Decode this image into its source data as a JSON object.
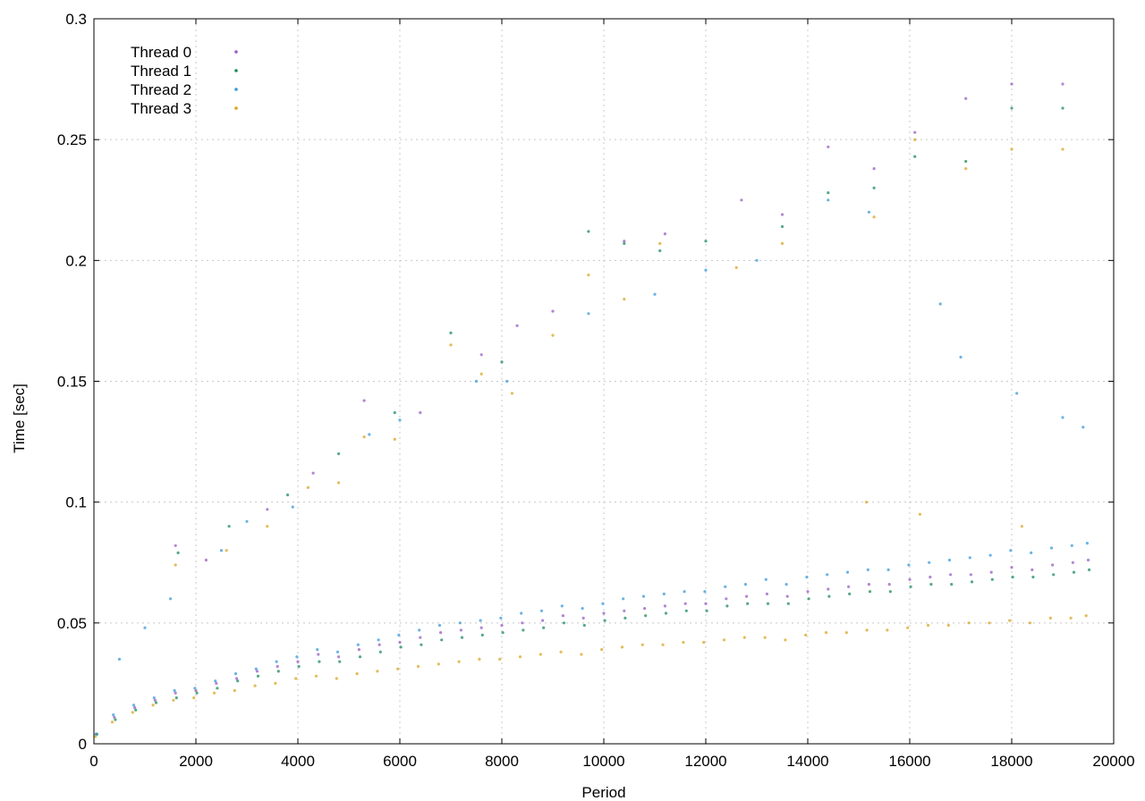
{
  "chart_data": {
    "type": "scatter",
    "title": "",
    "xlabel": "Period",
    "ylabel": "Time [sec]",
    "xlim": [
      0,
      20000
    ],
    "ylim": [
      0,
      0.3
    ],
    "x_ticks": [
      "0",
      "2000",
      "4000",
      "6000",
      "8000",
      "10000",
      "12000",
      "14000",
      "16000",
      "18000",
      "20000"
    ],
    "y_ticks": [
      "0",
      "0.05",
      "0.1",
      "0.15",
      "0.2",
      "0.25",
      "0.3"
    ],
    "x_tick_values": [
      0,
      2000,
      4000,
      6000,
      8000,
      10000,
      12000,
      14000,
      16000,
      18000,
      20000
    ],
    "y_tick_values": [
      0,
      0.05,
      0.1,
      0.15,
      0.2,
      0.25,
      0.3
    ],
    "grid": true,
    "legend_position": "top-left",
    "series": [
      {
        "name": "Thread 0",
        "color": "#9a5cc4",
        "points": [
          [
            50,
            0.004
          ],
          [
            400,
            0.011
          ],
          [
            800,
            0.015
          ],
          [
            1200,
            0.018
          ],
          [
            1600,
            0.021
          ],
          [
            2000,
            0.022
          ],
          [
            2400,
            0.025
          ],
          [
            2800,
            0.027
          ],
          [
            3200,
            0.03
          ],
          [
            3600,
            0.032
          ],
          [
            4000,
            0.034
          ],
          [
            4400,
            0.037
          ],
          [
            4800,
            0.036
          ],
          [
            5200,
            0.039
          ],
          [
            5600,
            0.041
          ],
          [
            6000,
            0.042
          ],
          [
            6400,
            0.044
          ],
          [
            6800,
            0.046
          ],
          [
            7200,
            0.047
          ],
          [
            7600,
            0.048
          ],
          [
            8000,
            0.049
          ],
          [
            8400,
            0.05
          ],
          [
            8800,
            0.051
          ],
          [
            9200,
            0.053
          ],
          [
            9600,
            0.052
          ],
          [
            10000,
            0.054
          ],
          [
            10400,
            0.055
          ],
          [
            10800,
            0.056
          ],
          [
            11200,
            0.057
          ],
          [
            11600,
            0.058
          ],
          [
            12000,
            0.058
          ],
          [
            12400,
            0.06
          ],
          [
            12800,
            0.061
          ],
          [
            13200,
            0.062
          ],
          [
            13600,
            0.061
          ],
          [
            14000,
            0.063
          ],
          [
            14400,
            0.064
          ],
          [
            14800,
            0.065
          ],
          [
            15200,
            0.066
          ],
          [
            15600,
            0.066
          ],
          [
            16000,
            0.068
          ],
          [
            16400,
            0.069
          ],
          [
            16800,
            0.07
          ],
          [
            17200,
            0.07
          ],
          [
            17600,
            0.071
          ],
          [
            18000,
            0.073
          ],
          [
            18400,
            0.072
          ],
          [
            18800,
            0.074
          ],
          [
            19200,
            0.075
          ],
          [
            19500,
            0.076
          ],
          [
            1600,
            0.082
          ],
          [
            2200,
            0.076
          ],
          [
            3400,
            0.097
          ],
          [
            4300,
            0.112
          ],
          [
            5300,
            0.142
          ],
          [
            6400,
            0.137
          ],
          [
            7600,
            0.161
          ],
          [
            8300,
            0.173
          ],
          [
            9000,
            0.179
          ],
          [
            10400,
            0.208
          ],
          [
            11200,
            0.211
          ],
          [
            12700,
            0.225
          ],
          [
            13500,
            0.219
          ],
          [
            14400,
            0.247
          ],
          [
            15300,
            0.238
          ],
          [
            16100,
            0.253
          ],
          [
            17100,
            0.267
          ],
          [
            18000,
            0.273
          ],
          [
            19000,
            0.273
          ]
        ]
      },
      {
        "name": "Thread 1",
        "color": "#1e8c5a",
        "points": [
          [
            60,
            0.004
          ],
          [
            420,
            0.01
          ],
          [
            820,
            0.014
          ],
          [
            1220,
            0.017
          ],
          [
            1620,
            0.019
          ],
          [
            2020,
            0.021
          ],
          [
            2420,
            0.023
          ],
          [
            2820,
            0.026
          ],
          [
            3220,
            0.028
          ],
          [
            3620,
            0.03
          ],
          [
            4020,
            0.032
          ],
          [
            4420,
            0.034
          ],
          [
            4820,
            0.034
          ],
          [
            5220,
            0.036
          ],
          [
            5620,
            0.038
          ],
          [
            6020,
            0.04
          ],
          [
            6420,
            0.041
          ],
          [
            6820,
            0.043
          ],
          [
            7220,
            0.044
          ],
          [
            7620,
            0.045
          ],
          [
            8020,
            0.046
          ],
          [
            8420,
            0.047
          ],
          [
            8820,
            0.048
          ],
          [
            9220,
            0.05
          ],
          [
            9620,
            0.049
          ],
          [
            10020,
            0.051
          ],
          [
            10420,
            0.052
          ],
          [
            10820,
            0.053
          ],
          [
            11220,
            0.054
          ],
          [
            11620,
            0.055
          ],
          [
            12020,
            0.055
          ],
          [
            12420,
            0.057
          ],
          [
            12820,
            0.058
          ],
          [
            13220,
            0.058
          ],
          [
            13620,
            0.058
          ],
          [
            14020,
            0.06
          ],
          [
            14420,
            0.061
          ],
          [
            14820,
            0.062
          ],
          [
            15220,
            0.063
          ],
          [
            15620,
            0.063
          ],
          [
            16020,
            0.065
          ],
          [
            16420,
            0.066
          ],
          [
            16820,
            0.066
          ],
          [
            17220,
            0.067
          ],
          [
            17620,
            0.068
          ],
          [
            18020,
            0.069
          ],
          [
            18420,
            0.069
          ],
          [
            18820,
            0.07
          ],
          [
            19220,
            0.071
          ],
          [
            19520,
            0.072
          ],
          [
            1650,
            0.079
          ],
          [
            2650,
            0.09
          ],
          [
            3800,
            0.103
          ],
          [
            4800,
            0.12
          ],
          [
            5900,
            0.137
          ],
          [
            7000,
            0.17
          ],
          [
            8000,
            0.158
          ],
          [
            9700,
            0.212
          ],
          [
            10400,
            0.207
          ],
          [
            11100,
            0.204
          ],
          [
            12000,
            0.208
          ],
          [
            13500,
            0.214
          ],
          [
            14400,
            0.228
          ],
          [
            15300,
            0.23
          ],
          [
            16100,
            0.243
          ],
          [
            17100,
            0.241
          ],
          [
            18000,
            0.263
          ],
          [
            19000,
            0.263
          ]
        ]
      },
      {
        "name": "Thread 2",
        "color": "#3a9ad9",
        "points": [
          [
            40,
            0.004
          ],
          [
            380,
            0.012
          ],
          [
            780,
            0.016
          ],
          [
            1180,
            0.019
          ],
          [
            1580,
            0.022
          ],
          [
            1980,
            0.023
          ],
          [
            2380,
            0.026
          ],
          [
            2780,
            0.029
          ],
          [
            3180,
            0.031
          ],
          [
            3580,
            0.034
          ],
          [
            3980,
            0.036
          ],
          [
            4380,
            0.039
          ],
          [
            4780,
            0.038
          ],
          [
            5180,
            0.041
          ],
          [
            5580,
            0.043
          ],
          [
            5980,
            0.045
          ],
          [
            6380,
            0.047
          ],
          [
            6780,
            0.049
          ],
          [
            7180,
            0.05
          ],
          [
            7580,
            0.051
          ],
          [
            7980,
            0.052
          ],
          [
            8380,
            0.054
          ],
          [
            8780,
            0.055
          ],
          [
            9180,
            0.057
          ],
          [
            9580,
            0.056
          ],
          [
            9980,
            0.058
          ],
          [
            10380,
            0.06
          ],
          [
            10780,
            0.061
          ],
          [
            11180,
            0.062
          ],
          [
            11580,
            0.063
          ],
          [
            11980,
            0.063
          ],
          [
            12380,
            0.065
          ],
          [
            12780,
            0.066
          ],
          [
            13180,
            0.068
          ],
          [
            13580,
            0.066
          ],
          [
            13980,
            0.069
          ],
          [
            14380,
            0.07
          ],
          [
            14780,
            0.071
          ],
          [
            15180,
            0.072
          ],
          [
            15580,
            0.072
          ],
          [
            15980,
            0.074
          ],
          [
            16380,
            0.075
          ],
          [
            16780,
            0.076
          ],
          [
            17180,
            0.077
          ],
          [
            17580,
            0.078
          ],
          [
            17980,
            0.08
          ],
          [
            18380,
            0.079
          ],
          [
            18780,
            0.081
          ],
          [
            19180,
            0.082
          ],
          [
            19480,
            0.083
          ],
          [
            500,
            0.035
          ],
          [
            1000,
            0.048
          ],
          [
            1500,
            0.06
          ],
          [
            2500,
            0.08
          ],
          [
            3000,
            0.092
          ],
          [
            3900,
            0.098
          ],
          [
            5400,
            0.128
          ],
          [
            6000,
            0.134
          ],
          [
            7500,
            0.15
          ],
          [
            8100,
            0.15
          ],
          [
            9700,
            0.178
          ],
          [
            11000,
            0.186
          ],
          [
            12000,
            0.196
          ],
          [
            13000,
            0.2
          ],
          [
            14400,
            0.225
          ],
          [
            15200,
            0.22
          ],
          [
            16600,
            0.182
          ],
          [
            17000,
            0.16
          ],
          [
            18100,
            0.145
          ],
          [
            19000,
            0.135
          ],
          [
            19400,
            0.131
          ]
        ]
      },
      {
        "name": "Thread 3",
        "color": "#d9a521",
        "points": [
          [
            30,
            0.003
          ],
          [
            360,
            0.009
          ],
          [
            760,
            0.013
          ],
          [
            1160,
            0.016
          ],
          [
            1560,
            0.018
          ],
          [
            1960,
            0.019
          ],
          [
            2360,
            0.021
          ],
          [
            2760,
            0.022
          ],
          [
            3160,
            0.024
          ],
          [
            3560,
            0.025
          ],
          [
            3960,
            0.027
          ],
          [
            4360,
            0.028
          ],
          [
            4760,
            0.027
          ],
          [
            5160,
            0.029
          ],
          [
            5560,
            0.03
          ],
          [
            5960,
            0.031
          ],
          [
            6360,
            0.032
          ],
          [
            6760,
            0.033
          ],
          [
            7160,
            0.034
          ],
          [
            7560,
            0.035
          ],
          [
            7960,
            0.035
          ],
          [
            8360,
            0.036
          ],
          [
            8760,
            0.037
          ],
          [
            9160,
            0.038
          ],
          [
            9560,
            0.037
          ],
          [
            9960,
            0.039
          ],
          [
            10360,
            0.04
          ],
          [
            10760,
            0.041
          ],
          [
            11160,
            0.041
          ],
          [
            11560,
            0.042
          ],
          [
            11960,
            0.042
          ],
          [
            12360,
            0.043
          ],
          [
            12760,
            0.044
          ],
          [
            13160,
            0.044
          ],
          [
            13560,
            0.043
          ],
          [
            13960,
            0.045
          ],
          [
            14360,
            0.046
          ],
          [
            14760,
            0.046
          ],
          [
            15160,
            0.047
          ],
          [
            15560,
            0.047
          ],
          [
            15960,
            0.048
          ],
          [
            16360,
            0.049
          ],
          [
            16760,
            0.049
          ],
          [
            17160,
            0.05
          ],
          [
            17560,
            0.05
          ],
          [
            17960,
            0.051
          ],
          [
            18360,
            0.05
          ],
          [
            18760,
            0.052
          ],
          [
            19160,
            0.052
          ],
          [
            19460,
            0.053
          ],
          [
            1600,
            0.074
          ],
          [
            2600,
            0.08
          ],
          [
            3400,
            0.09
          ],
          [
            4200,
            0.106
          ],
          [
            4800,
            0.108
          ],
          [
            5300,
            0.127
          ],
          [
            5900,
            0.126
          ],
          [
            7000,
            0.165
          ],
          [
            7600,
            0.153
          ],
          [
            8200,
            0.145
          ],
          [
            9000,
            0.169
          ],
          [
            9700,
            0.194
          ],
          [
            10400,
            0.184
          ],
          [
            11100,
            0.207
          ],
          [
            12600,
            0.197
          ],
          [
            13500,
            0.207
          ],
          [
            15300,
            0.218
          ],
          [
            16100,
            0.25
          ],
          [
            17100,
            0.238
          ],
          [
            18000,
            0.246
          ],
          [
            19000,
            0.246
          ],
          [
            15150,
            0.1
          ],
          [
            16200,
            0.095
          ],
          [
            18200,
            0.09
          ]
        ]
      }
    ]
  }
}
